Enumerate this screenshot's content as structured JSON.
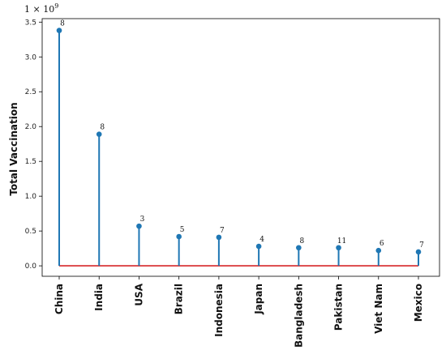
{
  "chart_data": {
    "type": "lollipop",
    "categories": [
      "China",
      "India",
      "USA",
      "Brazil",
      "Indonesia",
      "Japan",
      "Bangladesh",
      "Pakistan",
      "Viet Nam",
      "Mexico"
    ],
    "values": [
      3.38,
      1.89,
      0.57,
      0.42,
      0.41,
      0.28,
      0.26,
      0.26,
      0.22,
      0.2
    ],
    "value_unit_multiplier": "1 × 10^9",
    "offset_text": "1 × 10",
    "offset_exponent": "9",
    "annotations": [
      "8",
      "8",
      "3",
      "5",
      "7",
      "4",
      "8",
      "11",
      "6",
      "7"
    ],
    "ylabel": "Total Vaccination",
    "xlabel": "",
    "ylim": [
      -0.15,
      3.55
    ],
    "yticks": [
      0.0,
      0.5,
      1.0,
      1.5,
      2.0,
      2.5,
      3.0,
      3.5
    ],
    "ytick_labels": [
      "0.0",
      "0.5",
      "1.0",
      "1.5",
      "2.0",
      "2.5",
      "3.0",
      "3.5"
    ],
    "baseline": 0,
    "grid": false,
    "colors": {
      "stem": "#1f77b4",
      "marker": "#1f77b4",
      "baseline": "#d62728"
    }
  }
}
